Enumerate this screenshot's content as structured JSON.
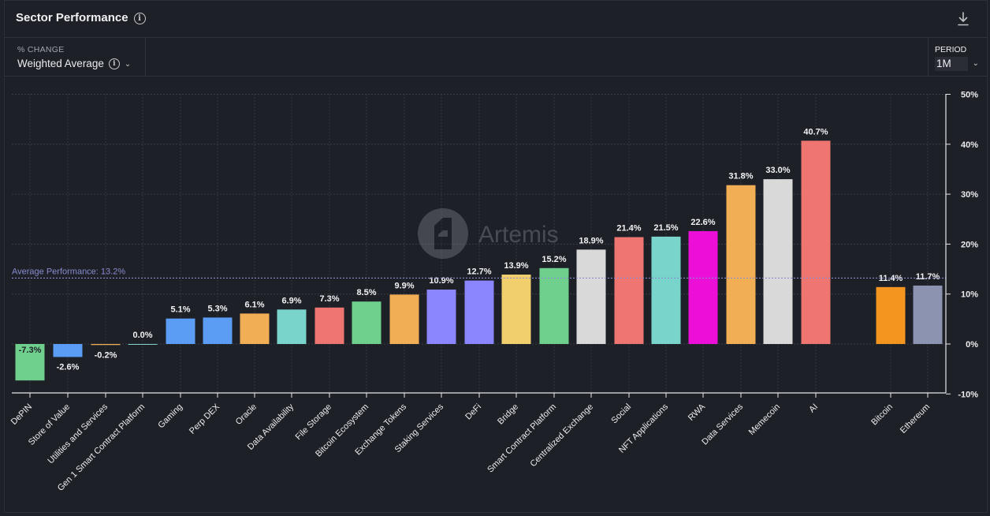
{
  "header": {
    "title": "Sector Performance"
  },
  "controls": {
    "metric_label": "% CHANGE",
    "metric_value": "Weighted Average",
    "period_label": "PERIOD",
    "period_value": "1M"
  },
  "watermark": "Artemis",
  "chart_data": {
    "type": "bar",
    "title": "Sector Performance",
    "ylim": [
      -10,
      50
    ],
    "yticks": [
      "50%",
      "40%",
      "30%",
      "20%",
      "10%",
      "0%",
      "-10%"
    ],
    "ytick_values": [
      50,
      40,
      30,
      20,
      10,
      0,
      -10
    ],
    "grid": true,
    "average_line": {
      "label": "Average Performance: 13.2%",
      "value": 13.2,
      "color": "#8a8ccf"
    },
    "categories": [
      "DePIN",
      "Store of Value",
      "Utilities and Services",
      "Gen 1 Smart Contract Platform",
      "Gaming",
      "Perp DEX",
      "Oracle",
      "Data Availability",
      "File Storage",
      "Bitcoin Ecosystem",
      "Exchange Tokens",
      "Staking Services",
      "DeFi",
      "Bridge",
      "Smart Contract Platform",
      "Centralized Exchange",
      "Social",
      "NFT Applications",
      "RWA",
      "Data Services",
      "Memecoin",
      "AI",
      "Bitcoin",
      "Ethereum"
    ],
    "values": [
      -7.3,
      -2.6,
      -0.2,
      0.0,
      5.1,
      5.3,
      6.1,
      6.9,
      7.3,
      8.5,
      9.9,
      10.9,
      12.7,
      13.9,
      15.2,
      18.9,
      21.4,
      21.5,
      22.6,
      31.8,
      33.0,
      40.7,
      11.4,
      11.7
    ],
    "labels": [
      "-7.3%",
      "-2.6%",
      "-0.2%",
      "0.0%",
      "5.1%",
      "5.3%",
      "6.1%",
      "6.9%",
      "7.3%",
      "8.5%",
      "9.9%",
      "10.9%",
      "12.7%",
      "13.9%",
      "15.2%",
      "18.9%",
      "21.4%",
      "21.5%",
      "22.6%",
      "31.8%",
      "33.0%",
      "40.7%",
      "11.4%",
      "11.7%"
    ],
    "colors": [
      "#6fd08e",
      "#5b9cf5",
      "#f2ae55",
      "#7fd3cb",
      "#5b9cf5",
      "#5b9cf5",
      "#f2ae55",
      "#79d4cb",
      "#ef7570",
      "#6fd08e",
      "#f2ae55",
      "#8b86fb",
      "#8b86fb",
      "#f0cf6c",
      "#6fd08e",
      "#d9d9d9",
      "#ef7570",
      "#79d4cb",
      "#ec0fd7",
      "#f2ae55",
      "#d9d9d9",
      "#ef7570",
      "#f4951f",
      "#8b93b0"
    ]
  }
}
